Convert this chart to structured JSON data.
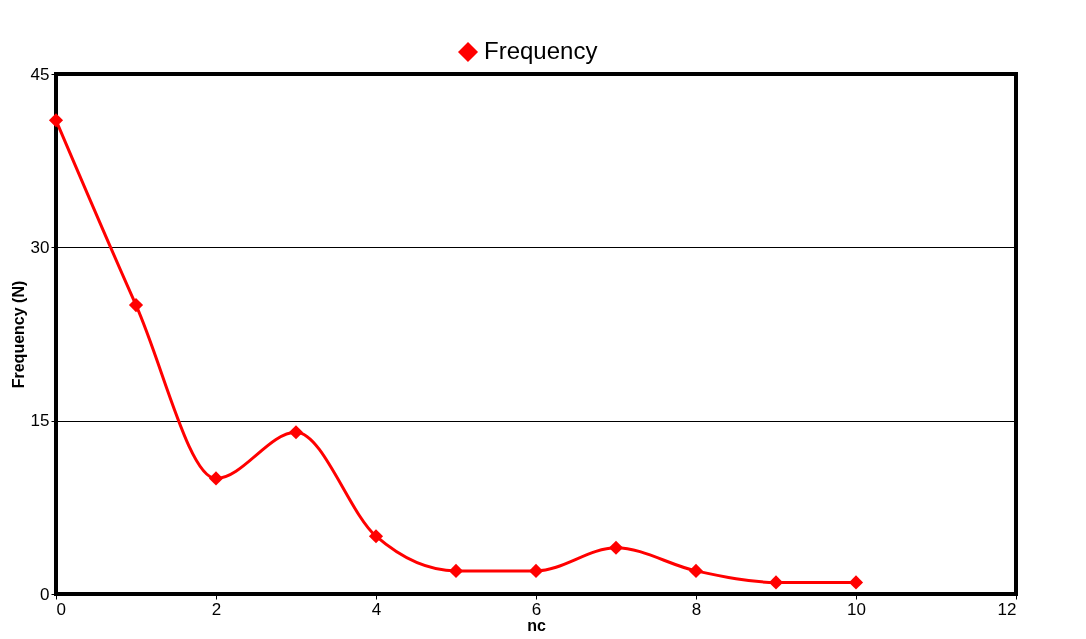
{
  "chart_data": {
    "type": "line",
    "xlabel": "nc",
    "ylabel": "Frequency (N)",
    "x": [
      0,
      1,
      2,
      3,
      4,
      5,
      6,
      7,
      8,
      9,
      10
    ],
    "series": [
      {
        "name": "Frequency",
        "color": "#ff0000",
        "values": [
          41,
          25,
          10,
          14,
          5,
          2,
          2,
          4,
          2,
          1,
          1
        ]
      }
    ],
    "xlim": [
      0,
      12
    ],
    "xticks": [
      0,
      2,
      4,
      6,
      8,
      10,
      12
    ],
    "ylim": [
      0,
      45
    ],
    "yticks": [
      0,
      15,
      30,
      45
    ],
    "grid": "y",
    "legend": "top",
    "marker": "diamond",
    "line_style": "solid"
  }
}
